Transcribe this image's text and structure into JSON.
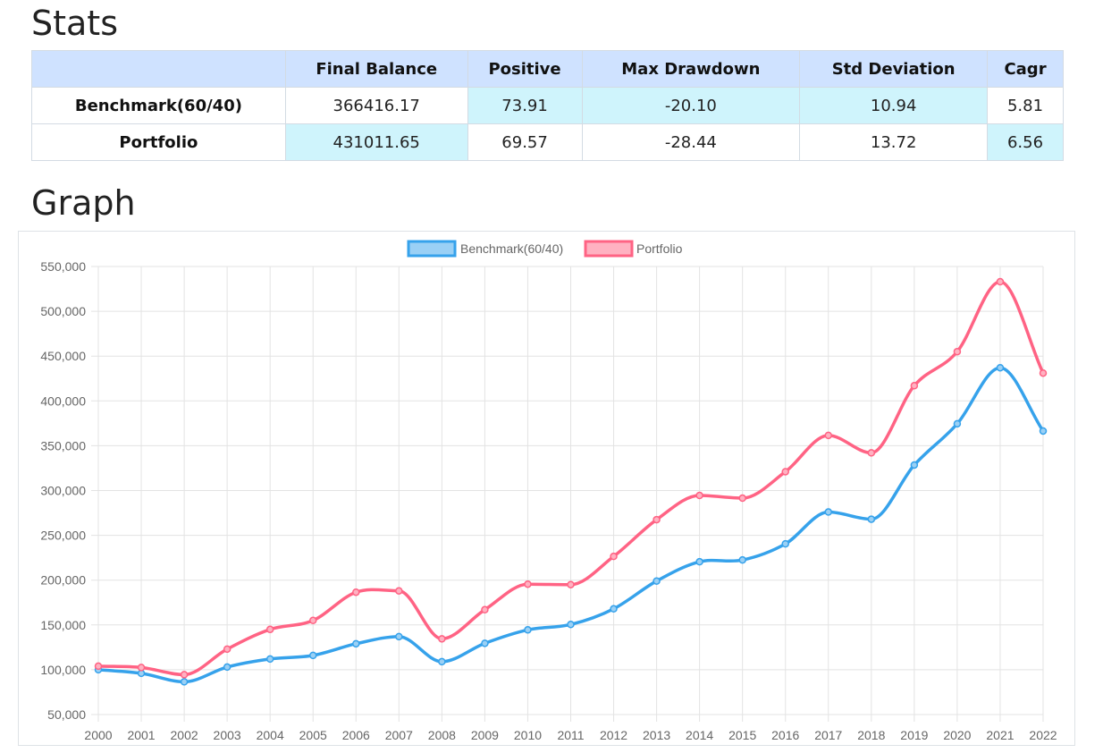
{
  "headings": {
    "stats": "Stats",
    "graph": "Graph"
  },
  "stats_table": {
    "columns": [
      "",
      "Final Balance",
      "Positive",
      "Max Drawdown",
      "Std Deviation",
      "Cagr"
    ],
    "rows": [
      {
        "label": "Benchmark(60/40)",
        "cells": [
          "366416.17",
          "73.91",
          "-20.10",
          "10.94",
          "5.81"
        ]
      },
      {
        "label": "Portfolio",
        "cells": [
          "431011.65",
          "69.57",
          "-28.44",
          "13.72",
          "6.56"
        ]
      }
    ]
  },
  "chart_data": {
    "type": "line",
    "title": "",
    "xlabel": "",
    "ylabel": "",
    "categories": [
      "2000",
      "2001",
      "2002",
      "2003",
      "2004",
      "2005",
      "2006",
      "2007",
      "2008",
      "2009",
      "2010",
      "2011",
      "2012",
      "2013",
      "2014",
      "2015",
      "2016",
      "2017",
      "2018",
      "2019",
      "2020",
      "2021",
      "2022"
    ],
    "ylim": [
      50000,
      550000
    ],
    "yticks": [
      50000,
      100000,
      150000,
      200000,
      250000,
      300000,
      350000,
      400000,
      450000,
      500000,
      550000
    ],
    "ytick_labels": [
      "50,000",
      "100,000",
      "150,000",
      "200,000",
      "250,000",
      "300,000",
      "350,000",
      "400,000",
      "450,000",
      "500,000",
      "550,000"
    ],
    "grid": true,
    "legend_position": "top-center",
    "series": [
      {
        "name": "Benchmark(60/40)",
        "color": "#36a2eb",
        "fill": "#9ad0f5",
        "values": [
          100000,
          96000,
          86500,
          103000,
          112000,
          116000,
          129000,
          137000,
          109000,
          129500,
          144500,
          150500,
          168000,
          199000,
          220500,
          222500,
          240500,
          276000,
          268000,
          328500,
          374500,
          437000,
          366416
        ]
      },
      {
        "name": "Portfolio",
        "color": "#ff6384",
        "fill": "#ffb1c1",
        "values": [
          104000,
          102500,
          94500,
          123000,
          145000,
          155000,
          186500,
          188000,
          134500,
          167000,
          195500,
          195000,
          226500,
          267500,
          294500,
          291500,
          321000,
          361500,
          342000,
          417000,
          455000,
          533000,
          431012
        ]
      }
    ]
  }
}
